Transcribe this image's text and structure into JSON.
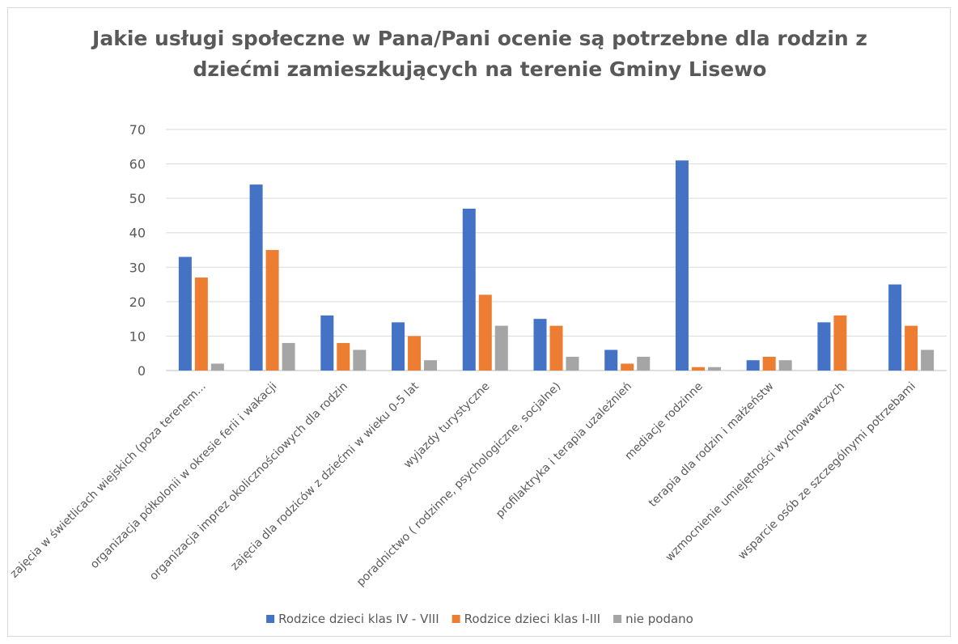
{
  "chart_data": {
    "type": "bar",
    "title": [
      "Jakie usługi społeczne w Pana/Pani  ocenie są potrzebne dla rodzin z",
      "dziećmi zamieszkujących na terenie Gminy Lisewo"
    ],
    "categories": [
      "zajęcia w świetlicach wiejskich (poza terenem...",
      "organizacja półkolonii w okresie ferii i wakacji",
      "organizacja imprez okolicznościowych dla rodzin",
      "zajęcia dla rodziców z dziećmi w wieku 0-5 lat",
      "wyjazdy turystyczne",
      "poradnictwo ( rodzinne, psychologiczne, socjalne)",
      "profilaktryka i terapia  uzależnień",
      "mediacje rodzinne",
      "terapia dla rodzin i małżeństw",
      "wzmocnienie umiejętności wychowawczych",
      "wsparcie osób ze szczególnymi potrzebami"
    ],
    "series": [
      {
        "name": "Rodzice dzieci klas IV - VIII",
        "color": "#4472c4",
        "values": [
          33,
          54,
          16,
          14,
          47,
          15,
          6,
          61,
          3,
          14,
          25
        ]
      },
      {
        "name": "Rodzice dzieci klas I-III",
        "color": "#ed7d31",
        "values": [
          27,
          35,
          8,
          10,
          22,
          13,
          2,
          1,
          4,
          16,
          13
        ]
      },
      {
        "name": "nie podano",
        "color": "#a5a5a5",
        "values": [
          2,
          8,
          6,
          3,
          13,
          4,
          4,
          1,
          3,
          0,
          6
        ]
      }
    ],
    "ylim": [
      0,
      70
    ],
    "yticks": [
      0,
      10,
      20,
      30,
      40,
      50,
      60,
      70
    ],
    "grid": true,
    "legend": "bottom",
    "gridline_color": "#d9d9d9",
    "text_color": "#595959"
  }
}
